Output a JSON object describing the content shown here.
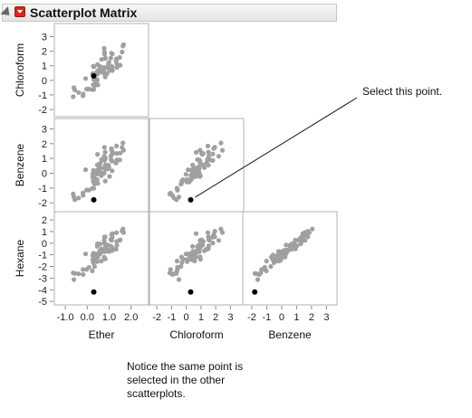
{
  "report": {
    "title": "Scatterplot Matrix"
  },
  "callout": {
    "text": "Select this point."
  },
  "note": {
    "text": "Notice the same point is selected in the other scatterplots."
  },
  "colors": {
    "point": "#a0a0a0",
    "selected": "#000000",
    "frame": "#b0b0b0",
    "menu": "#d9261c"
  },
  "chart_data": {
    "type": "scatter",
    "variables": [
      "Ether",
      "Chloroform",
      "Benzene",
      "Hexane"
    ],
    "xlabels": [
      "Ether",
      "Chloroform",
      "Benzene"
    ],
    "ylabels": [
      "Chloroform",
      "Benzene",
      "Hexane"
    ],
    "xticks": [
      [
        "-1.0",
        "0.0",
        "1.0",
        "2.0"
      ],
      [
        "-2",
        "-1",
        "0",
        "1",
        "2",
        "3"
      ],
      [
        "-2",
        "-1",
        "0",
        "1",
        "2",
        "3"
      ]
    ],
    "yticks": [
      [
        "3",
        "2",
        "1",
        "0",
        "-1",
        "-2"
      ],
      [
        "3",
        "2",
        "1",
        "0",
        "-1",
        "-2"
      ],
      [
        "2",
        "1",
        "0",
        "-1",
        "-2",
        "-3",
        "-4",
        "-5"
      ]
    ],
    "ranges": {
      "Ether": [
        -1.5,
        2.8
      ],
      "Chloroform": [
        -2.5,
        3.9
      ],
      "Benzene": [
        -2.6,
        3.7
      ],
      "Hexane": [
        -5.3,
        2.7
      ]
    },
    "selected_point": {
      "Ether": 0.3,
      "Chloroform": 0.3,
      "Benzene": -1.8,
      "Hexane": -4.2
    },
    "seed": 7,
    "n": 70
  }
}
